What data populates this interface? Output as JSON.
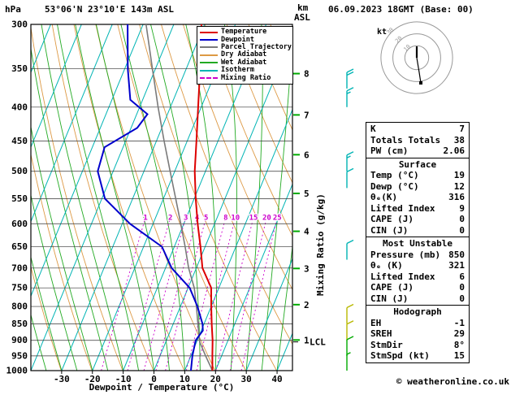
{
  "header": {
    "pressure_unit": "hPa",
    "station": "53°06'N 23°10'E 143m ASL",
    "datetime": "06.09.2023 18GMT (Base: 00)",
    "altitude_unit_line1": "km",
    "altitude_unit_line2": "ASL"
  },
  "axes": {
    "x_label": "Dewpoint / Temperature (°C)",
    "right_label": "Mixing Ratio (g/kg)"
  },
  "footer": {
    "credit": "© weatheronline.co.uk"
  },
  "legend": {
    "items": [
      {
        "label": "Temperature",
        "color": "#dd0000",
        "dash": false
      },
      {
        "label": "Dewpoint",
        "color": "#0000cc",
        "dash": false
      },
      {
        "label": "Parcel Trajectory",
        "color": "#7a7a7a",
        "dash": false
      },
      {
        "label": "Dry Adiabat",
        "color": "#dd9944",
        "dash": false
      },
      {
        "label": "Wet Adiabat",
        "color": "#22aa22",
        "dash": false
      },
      {
        "label": "Isotherm",
        "color": "#00b4b4",
        "dash": false
      },
      {
        "label": "Mixing Ratio",
        "color": "#cc00cc",
        "dash": true
      }
    ]
  },
  "stats": {
    "top": {
      "rows": [
        {
          "label": "K",
          "value": "7"
        },
        {
          "label": "Totals Totals",
          "value": "38"
        },
        {
          "label": "PW (cm)",
          "value": "2.06"
        }
      ]
    },
    "surface": {
      "title": "Surface",
      "rows": [
        {
          "label": "Temp (°C)",
          "value": "19"
        },
        {
          "label": "Dewp (°C)",
          "value": "12"
        },
        {
          "label": "θₑ(K)",
          "value": "316"
        },
        {
          "label": "Lifted Index",
          "value": "9"
        },
        {
          "label": "CAPE (J)",
          "value": "0"
        },
        {
          "label": "CIN (J)",
          "value": "0"
        }
      ]
    },
    "most_unstable": {
      "title": "Most Unstable",
      "rows": [
        {
          "label": "Pressure (mb)",
          "value": "850"
        },
        {
          "label": "θₑ (K)",
          "value": "321"
        },
        {
          "label": "Lifted Index",
          "value": "6"
        },
        {
          "label": "CAPE (J)",
          "value": "0"
        },
        {
          "label": "CIN (J)",
          "value": "0"
        }
      ]
    },
    "hodo": {
      "title": "Hodograph",
      "rows": [
        {
          "label": "EH",
          "value": "-1"
        },
        {
          "label": "SREH",
          "value": "29"
        },
        {
          "label": "StmDir",
          "value": "8°"
        },
        {
          "label": "StmSpd (kt)",
          "value": "15"
        }
      ]
    }
  },
  "chart_data": {
    "type": "skewt_logp",
    "pressure_range": [
      300,
      1000
    ],
    "temp_axis_range": [
      -40,
      45
    ],
    "pressure_levels": [
      300,
      350,
      400,
      450,
      500,
      550,
      600,
      650,
      700,
      750,
      800,
      850,
      900,
      950,
      1000
    ],
    "temp_ticks": [
      -30,
      -20,
      -10,
      0,
      10,
      20,
      30,
      40
    ],
    "mixing_ratio_lines": [
      1,
      2,
      3,
      4,
      5,
      8,
      10,
      15,
      20,
      25
    ],
    "km_ticks": [
      [
        1,
        899
      ],
      [
        2,
        795
      ],
      [
        3,
        701
      ],
      [
        4,
        616
      ],
      [
        5,
        540
      ],
      [
        6,
        472
      ],
      [
        7,
        411
      ],
      [
        8,
        356
      ]
    ],
    "lcl": {
      "label": "LCL",
      "p": 905
    },
    "temperature_profile": [
      [
        1000,
        19
      ],
      [
        950,
        17
      ],
      [
        900,
        15
      ],
      [
        850,
        12.5
      ],
      [
        800,
        10
      ],
      [
        750,
        7.5
      ],
      [
        700,
        2
      ],
      [
        650,
        -1.5
      ],
      [
        600,
        -5.5
      ],
      [
        550,
        -9.5
      ],
      [
        500,
        -13.5
      ],
      [
        450,
        -17
      ],
      [
        400,
        -21
      ],
      [
        350,
        -25.5
      ],
      [
        300,
        -31
      ]
    ],
    "dewpoint_profile": [
      [
        1000,
        12
      ],
      [
        950,
        10.5
      ],
      [
        900,
        9.5
      ],
      [
        870,
        10.5
      ],
      [
        850,
        9.5
      ],
      [
        800,
        5.5
      ],
      [
        750,
        0.5
      ],
      [
        700,
        -8
      ],
      [
        650,
        -14
      ],
      [
        600,
        -27.5
      ],
      [
        550,
        -39
      ],
      [
        500,
        -45
      ],
      [
        460,
        -46
      ],
      [
        430,
        -38
      ],
      [
        410,
        -36.5
      ],
      [
        390,
        -44
      ],
      [
        350,
        -49
      ],
      [
        300,
        -55
      ]
    ],
    "parcel_profile": [
      [
        1000,
        19
      ],
      [
        950,
        14.8
      ],
      [
        905,
        11
      ],
      [
        850,
        8
      ],
      [
        800,
        5.2
      ],
      [
        750,
        2
      ],
      [
        700,
        -2.5
      ],
      [
        650,
        -6.5
      ],
      [
        600,
        -11
      ],
      [
        550,
        -16
      ],
      [
        500,
        -21.5
      ],
      [
        450,
        -27.5
      ],
      [
        400,
        -34
      ],
      [
        350,
        -41
      ],
      [
        300,
        -49
      ]
    ],
    "wind_barbs": [
      {
        "p": 375,
        "kt": 20,
        "color": "#00b4b4"
      },
      {
        "p": 400,
        "kt": 15,
        "color": "#00b4b4"
      },
      {
        "p": 500,
        "kt": 15,
        "color": "#00b4b4"
      },
      {
        "p": 530,
        "kt": 10,
        "color": "#00b4b4"
      },
      {
        "p": 680,
        "kt": 10,
        "color": "#00b4b4"
      },
      {
        "p": 850,
        "kt": 10,
        "color": "#b8b800"
      },
      {
        "p": 900,
        "kt": 10,
        "color": "#b8b800"
      },
      {
        "p": 950,
        "kt": 10,
        "color": "#00aa00"
      },
      {
        "p": 1000,
        "kt": 5,
        "color": "#00aa00"
      }
    ],
    "colors": {
      "temperature": "#dd0000",
      "dewpoint": "#0000cc",
      "parcel": "#7a7a7a",
      "dry_adiabat": "#dd9944",
      "wet_adiabat": "#22aa22",
      "isotherm": "#00b4b4",
      "mixing_ratio": "#cc00cc",
      "km_tick": "#00aa00"
    },
    "hodograph": {
      "unit": "kt",
      "rings_kt": [
        10,
        20,
        30
      ],
      "trace_bold": [
        [
          0,
          -14
        ],
        [
          0,
          0
        ]
      ],
      "trace_thin": [
        [
          0,
          0
        ],
        [
          3,
          18
        ],
        [
          5,
          31
        ]
      ],
      "dot": [
        5,
        31
      ]
    }
  }
}
